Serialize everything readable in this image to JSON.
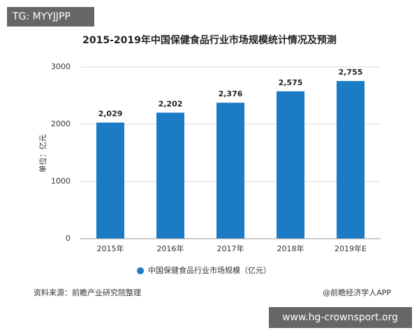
{
  "chart_data": {
    "type": "bar",
    "title": "2015-2019年中国保健食品行业市场规模统计情况及预测",
    "y_label": "单位：亿元",
    "categories": [
      "2015年",
      "2016年",
      "2017年",
      "2018年",
      "2019年E"
    ],
    "series": [
      {
        "name": "中国保健食品行业市场规模（亿元）",
        "color": "#1b7bc4",
        "values": [
          2029,
          2202,
          2376,
          2575,
          2755
        ],
        "value_labels": [
          "2,029",
          "2,202",
          "2,376",
          "2,575",
          "2,755"
        ]
      }
    ],
    "ylim": [
      0,
      3000
    ],
    "yticks": [
      0,
      1000,
      2000,
      3000
    ],
    "grid": true,
    "source": "资料来源：前瞻产业研究院整理",
    "credit": "@前瞻经济学人APP",
    "overlays": [
      "TG: MYYJJPP",
      "www.hg-crownsport.org"
    ]
  }
}
